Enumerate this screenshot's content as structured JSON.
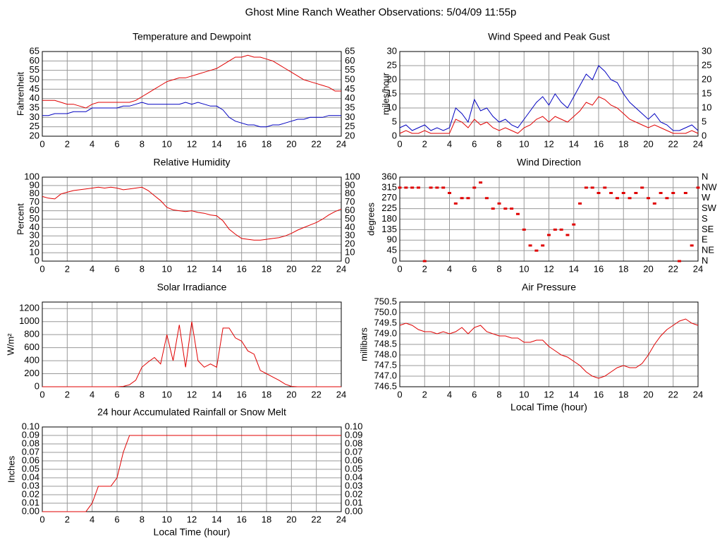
{
  "title": "Ghost Mine Ranch Weather Observations: 5/04/09 11:55p",
  "chart_data": [
    {
      "type": "line",
      "title": "Temperature and Dewpoint",
      "ylabel": "Fahrenheit",
      "xlim": [
        0,
        24
      ],
      "xticks": [
        0,
        2,
        4,
        6,
        8,
        10,
        12,
        14,
        16,
        18,
        20,
        22,
        24
      ],
      "ylim": [
        20,
        65
      ],
      "yticks": [
        20,
        25,
        30,
        35,
        40,
        45,
        50,
        55,
        60,
        65
      ],
      "y2ticks": [
        20,
        25,
        30,
        35,
        40,
        45,
        50,
        55,
        60,
        65
      ],
      "grid": true,
      "x": [
        0,
        0.5,
        1,
        1.5,
        2,
        2.5,
        3,
        3.5,
        4,
        4.5,
        5,
        5.5,
        6,
        6.5,
        7,
        7.5,
        8,
        8.5,
        9,
        9.5,
        10,
        10.5,
        11,
        11.5,
        12,
        12.5,
        13,
        13.5,
        14,
        14.5,
        15,
        15.5,
        16,
        16.5,
        17,
        17.5,
        18,
        18.5,
        19,
        19.5,
        20,
        20.5,
        21,
        21.5,
        22,
        22.5,
        23,
        23.5,
        24
      ],
      "series": [
        {
          "color": "#e00000",
          "values": [
            39,
            39,
            39,
            38,
            37,
            37,
            36,
            35,
            37,
            38,
            38,
            38,
            38,
            38,
            38,
            39,
            41,
            43,
            45,
            47,
            49,
            50,
            51,
            51,
            52,
            53,
            54,
            55,
            56,
            58,
            60,
            62,
            62,
            63,
            62,
            62,
            61,
            60,
            58,
            56,
            54,
            52,
            50,
            49,
            48,
            47,
            46,
            44,
            44
          ]
        },
        {
          "color": "#0000c0",
          "values": [
            31,
            31,
            32,
            32,
            32,
            33,
            33,
            33,
            35,
            35,
            35,
            35,
            35,
            36,
            36,
            37,
            38,
            37,
            37,
            37,
            37,
            37,
            37,
            38,
            37,
            38,
            37,
            36,
            36,
            34,
            30,
            28,
            27,
            26,
            26,
            25,
            25,
            26,
            26,
            27,
            28,
            29,
            29,
            30,
            30,
            30,
            31,
            31,
            31
          ]
        }
      ]
    },
    {
      "type": "line",
      "title": "Wind Speed and Peak Gust",
      "ylabel": "miles/hour",
      "xlim": [
        0,
        24
      ],
      "xticks": [
        0,
        2,
        4,
        6,
        8,
        10,
        12,
        14,
        16,
        18,
        20,
        22,
        24
      ],
      "ylim": [
        0,
        30
      ],
      "yticks": [
        0,
        5,
        10,
        15,
        20,
        25,
        30
      ],
      "y2ticks": [
        0,
        5,
        10,
        15,
        20,
        25,
        30
      ],
      "grid": true,
      "x": [
        0,
        0.5,
        1,
        1.5,
        2,
        2.5,
        3,
        3.5,
        4,
        4.5,
        5,
        5.5,
        6,
        6.5,
        7,
        7.5,
        8,
        8.5,
        9,
        9.5,
        10,
        10.5,
        11,
        11.5,
        12,
        12.5,
        13,
        13.5,
        14,
        14.5,
        15,
        15.5,
        16,
        16.5,
        17,
        17.5,
        18,
        18.5,
        19,
        19.5,
        20,
        20.5,
        21,
        21.5,
        22,
        22.5,
        23,
        23.5,
        24
      ],
      "series": [
        {
          "color": "#0000c0",
          "values": [
            3,
            4,
            2,
            3,
            4,
            2,
            3,
            2,
            3,
            10,
            8,
            5,
            13,
            9,
            10,
            7,
            5,
            6,
            4,
            3,
            6,
            9,
            12,
            14,
            11,
            15,
            12,
            10,
            14,
            18,
            22,
            20,
            25,
            23,
            20,
            19,
            15,
            12,
            10,
            8,
            6,
            8,
            5,
            4,
            2,
            2,
            3,
            4,
            2
          ]
        },
        {
          "color": "#e00000",
          "values": [
            1,
            2,
            1,
            1,
            2,
            1,
            1,
            1,
            1,
            6,
            5,
            3,
            6,
            4,
            5,
            3,
            2,
            3,
            2,
            1,
            3,
            4,
            6,
            7,
            5,
            7,
            6,
            5,
            7,
            9,
            12,
            11,
            14,
            13,
            11,
            10,
            8,
            6,
            5,
            4,
            3,
            4,
            3,
            2,
            1,
            1,
            1,
            2,
            1
          ]
        }
      ]
    },
    {
      "type": "line",
      "title": "Relative Humidity",
      "ylabel": "Percent",
      "xlim": [
        0,
        24
      ],
      "xticks": [
        0,
        2,
        4,
        6,
        8,
        10,
        12,
        14,
        16,
        18,
        20,
        22,
        24
      ],
      "ylim": [
        0,
        100
      ],
      "yticks": [
        0,
        10,
        20,
        30,
        40,
        50,
        60,
        70,
        80,
        90,
        100
      ],
      "y2ticks": [
        0,
        10,
        20,
        30,
        40,
        50,
        60,
        70,
        80,
        90,
        100
      ],
      "grid": true,
      "x": [
        0,
        0.5,
        1,
        1.5,
        2,
        2.5,
        3,
        3.5,
        4,
        4.5,
        5,
        5.5,
        6,
        6.5,
        7,
        7.5,
        8,
        8.5,
        9,
        9.5,
        10,
        10.5,
        11,
        11.5,
        12,
        12.5,
        13,
        13.5,
        14,
        14.5,
        15,
        15.5,
        16,
        16.5,
        17,
        17.5,
        18,
        18.5,
        19,
        19.5,
        20,
        20.5,
        21,
        21.5,
        22,
        22.5,
        23,
        23.5,
        24
      ],
      "series": [
        {
          "color": "#e00000",
          "values": [
            77,
            75,
            74,
            80,
            82,
            84,
            85,
            86,
            87,
            88,
            87,
            88,
            87,
            85,
            86,
            87,
            88,
            84,
            78,
            72,
            64,
            61,
            60,
            59,
            60,
            58,
            57,
            55,
            54,
            48,
            38,
            32,
            27,
            26,
            25,
            25,
            26,
            27,
            28,
            30,
            33,
            37,
            40,
            43,
            46,
            50,
            55,
            59,
            62
          ]
        }
      ]
    },
    {
      "type": "scatter",
      "title": "Wind Direction",
      "ylabel": "degrees",
      "xlim": [
        0,
        24
      ],
      "xticks": [
        0,
        2,
        4,
        6,
        8,
        10,
        12,
        14,
        16,
        18,
        20,
        22,
        24
      ],
      "ylim": [
        0,
        360
      ],
      "yticks": [
        0,
        45,
        90,
        135,
        180,
        225,
        270,
        315,
        360
      ],
      "y2ticks": [
        {
          "value": 0,
          "label": "N"
        },
        {
          "value": 45,
          "label": "NE"
        },
        {
          "value": 90,
          "label": "E"
        },
        {
          "value": 135,
          "label": "SE"
        },
        {
          "value": 180,
          "label": "S"
        },
        {
          "value": 225,
          "label": "SW"
        },
        {
          "value": 270,
          "label": "W"
        },
        {
          "value": 315,
          "label": "NW"
        },
        {
          "value": 360,
          "label": "N"
        }
      ],
      "grid": true,
      "x": [
        0,
        0.5,
        1,
        1.5,
        2,
        2.5,
        3,
        3.5,
        4,
        4.5,
        5,
        5.5,
        6,
        6.5,
        7,
        7.5,
        8,
        8.5,
        9,
        9.5,
        10,
        10.5,
        11,
        11.5,
        12,
        12.5,
        13,
        13.5,
        14,
        14.5,
        15,
        15.5,
        16,
        16.5,
        17,
        17.5,
        18,
        18.5,
        19,
        19.5,
        20,
        20.5,
        21,
        21.5,
        22,
        22.5,
        23,
        23.5,
        24
      ],
      "series": [
        {
          "color": "#e00000",
          "values": [
            315,
            315,
            315,
            315,
            0,
            315,
            315,
            315,
            292,
            247,
            270,
            270,
            315,
            337,
            270,
            225,
            247,
            225,
            225,
            202,
            135,
            67,
            45,
            67,
            112,
            135,
            135,
            112,
            157,
            247,
            315,
            315,
            292,
            315,
            292,
            270,
            292,
            270,
            292,
            315,
            270,
            247,
            292,
            270,
            292,
            0,
            292,
            67,
            315
          ]
        }
      ]
    },
    {
      "type": "line",
      "title": "Solar Irradiance",
      "ylabel": "W/m²",
      "xlim": [
        0,
        24
      ],
      "xticks": [
        0,
        2,
        4,
        6,
        8,
        10,
        12,
        14,
        16,
        18,
        20,
        22,
        24
      ],
      "ylim": [
        0,
        1300
      ],
      "yticks": [
        0,
        200,
        400,
        600,
        800,
        1000,
        1200
      ],
      "grid": true,
      "x": [
        0,
        0.5,
        1,
        1.5,
        2,
        2.5,
        3,
        3.5,
        4,
        4.5,
        5,
        5.5,
        6,
        6.5,
        7,
        7.5,
        8,
        8.5,
        9,
        9.5,
        10,
        10.5,
        11,
        11.5,
        12,
        12.5,
        13,
        13.5,
        14,
        14.5,
        15,
        15.5,
        16,
        16.5,
        17,
        17.5,
        18,
        18.5,
        19,
        19.5,
        20,
        20.5,
        21,
        21.5,
        22,
        22.5,
        23,
        23.5,
        24
      ],
      "series": [
        {
          "color": "#e00000",
          "values": [
            0,
            0,
            0,
            0,
            0,
            0,
            0,
            0,
            0,
            0,
            0,
            0,
            0,
            5,
            30,
            100,
            300,
            380,
            450,
            350,
            800,
            400,
            950,
            300,
            1000,
            400,
            300,
            350,
            300,
            900,
            900,
            750,
            700,
            550,
            500,
            250,
            200,
            150,
            100,
            40,
            5,
            0,
            0,
            0,
            0,
            0,
            0,
            0,
            0
          ]
        }
      ]
    },
    {
      "type": "line",
      "title": "Air Pressure",
      "ylabel": "millibars",
      "xlabel": "Local Time (hour)",
      "xlim": [
        0,
        24
      ],
      "xticks": [
        0,
        2,
        4,
        6,
        8,
        10,
        12,
        14,
        16,
        18,
        20,
        22,
        24
      ],
      "ylim": [
        746.5,
        750.5
      ],
      "yticks": [
        746.5,
        {
          "value": 747,
          "label": "747.0"
        },
        747.5,
        {
          "value": 748,
          "label": "748.0"
        },
        748.5,
        {
          "value": 749,
          "label": "749.0"
        },
        749.5,
        {
          "value": 750,
          "label": "750.0"
        },
        750.5
      ],
      "grid": true,
      "x": [
        0,
        0.5,
        1,
        1.5,
        2,
        2.5,
        3,
        3.5,
        4,
        4.5,
        5,
        5.5,
        6,
        6.5,
        7,
        7.5,
        8,
        8.5,
        9,
        9.5,
        10,
        10.5,
        11,
        11.5,
        12,
        12.5,
        13,
        13.5,
        14,
        14.5,
        15,
        15.5,
        16,
        16.5,
        17,
        17.5,
        18,
        18.5,
        19,
        19.5,
        20,
        20.5,
        21,
        21.5,
        22,
        22.5,
        23,
        23.5,
        24
      ],
      "series": [
        {
          "color": "#e00000",
          "values": [
            749.4,
            749.5,
            749.4,
            749.2,
            749.1,
            749.1,
            749.0,
            749.1,
            749.0,
            749.1,
            749.3,
            749.0,
            749.3,
            749.4,
            749.1,
            749.0,
            748.9,
            748.9,
            748.8,
            748.8,
            748.6,
            748.6,
            748.7,
            748.7,
            748.4,
            748.2,
            748.0,
            747.9,
            747.7,
            747.5,
            747.2,
            747.0,
            746.9,
            747.0,
            747.2,
            747.4,
            747.5,
            747.4,
            747.4,
            747.6,
            748.0,
            748.5,
            748.9,
            749.2,
            749.4,
            749.6,
            749.7,
            749.5,
            749.4
          ]
        }
      ]
    },
    {
      "type": "line",
      "title": "24 hour Accumulated Rainfall or Snow Melt",
      "ylabel": "Inches",
      "xlabel": "Local Time (hour)",
      "xlim": [
        0,
        24
      ],
      "xticks": [
        0,
        2,
        4,
        6,
        8,
        10,
        12,
        14,
        16,
        18,
        20,
        22,
        24
      ],
      "ylim": [
        0,
        0.1
      ],
      "yticks": [
        {
          "value": 0,
          "label": "0.00"
        },
        {
          "value": 0.01,
          "label": "0.01"
        },
        {
          "value": 0.02,
          "label": "0.02"
        },
        {
          "value": 0.03,
          "label": "0.03"
        },
        {
          "value": 0.04,
          "label": "0.04"
        },
        {
          "value": 0.05,
          "label": "0.05"
        },
        {
          "value": 0.06,
          "label": "0.06"
        },
        {
          "value": 0.07,
          "label": "0.07"
        },
        {
          "value": 0.08,
          "label": "0.08"
        },
        {
          "value": 0.09,
          "label": "0.09"
        },
        {
          "value": 0.1,
          "label": "0.10"
        }
      ],
      "y2ticks": [
        {
          "value": 0,
          "label": "0.00"
        },
        {
          "value": 0.01,
          "label": "0.01"
        },
        {
          "value": 0.02,
          "label": "0.02"
        },
        {
          "value": 0.03,
          "label": "0.03"
        },
        {
          "value": 0.04,
          "label": "0.04"
        },
        {
          "value": 0.05,
          "label": "0.05"
        },
        {
          "value": 0.06,
          "label": "0.06"
        },
        {
          "value": 0.07,
          "label": "0.07"
        },
        {
          "value": 0.08,
          "label": "0.08"
        },
        {
          "value": 0.09,
          "label": "0.09"
        },
        {
          "value": 0.1,
          "label": "0.10"
        }
      ],
      "grid": true,
      "x": [
        0,
        0.5,
        1,
        1.5,
        2,
        2.5,
        3,
        3.5,
        4,
        4.5,
        5,
        5.5,
        6,
        6.5,
        7,
        7.5,
        8,
        8.5,
        9,
        9.5,
        10,
        10.5,
        11,
        11.5,
        12,
        12.5,
        13,
        13.5,
        14,
        14.5,
        15,
        15.5,
        16,
        16.5,
        17,
        17.5,
        18,
        18.5,
        19,
        19.5,
        20,
        20.5,
        21,
        21.5,
        22,
        22.5,
        23,
        23.5,
        24
      ],
      "series": [
        {
          "color": "#e00000",
          "values": [
            0,
            0,
            0,
            0,
            0,
            0,
            0,
            0,
            0.01,
            0.03,
            0.03,
            0.03,
            0.04,
            0.07,
            0.09,
            0.09,
            0.09,
            0.09,
            0.09,
            0.09,
            0.09,
            0.09,
            0.09,
            0.09,
            0.09,
            0.09,
            0.09,
            0.09,
            0.09,
            0.09,
            0.09,
            0.09,
            0.09,
            0.09,
            0.09,
            0.09,
            0.09,
            0.09,
            0.09,
            0.09,
            0.09,
            0.09,
            0.09,
            0.09,
            0.09,
            0.09,
            0.09,
            0.09,
            0.09
          ]
        }
      ]
    }
  ]
}
